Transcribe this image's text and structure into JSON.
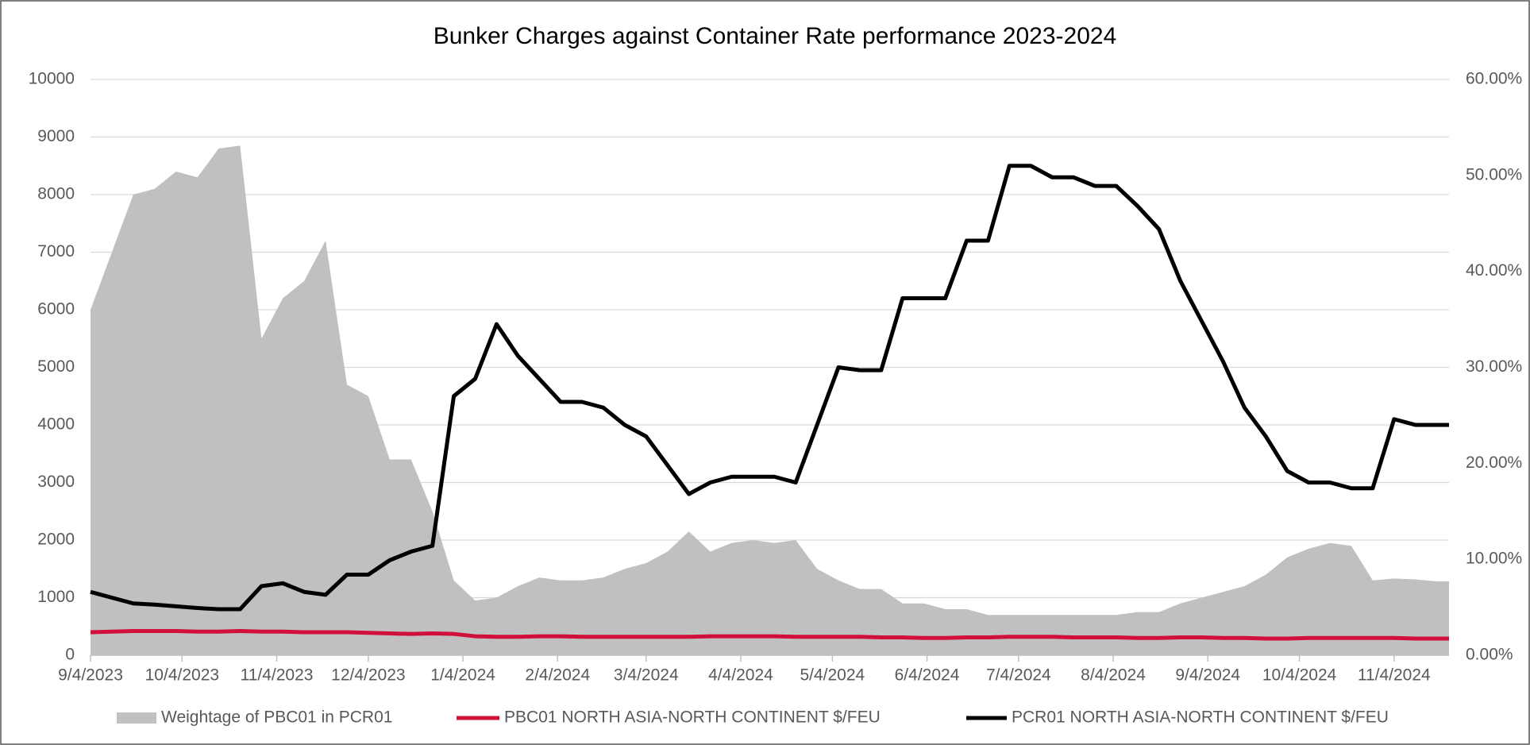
{
  "chart_data": {
    "type": "line",
    "title": "Bunker Charges against Container Rate performance 2023-2024",
    "x": [
      "2023-09-04",
      "2023-09-11",
      "2023-09-18",
      "2023-09-25",
      "2023-10-02",
      "2023-10-09",
      "2023-10-16",
      "2023-10-23",
      "2023-10-30",
      "2023-11-06",
      "2023-11-13",
      "2023-11-20",
      "2023-11-27",
      "2023-12-04",
      "2023-12-11",
      "2023-12-18",
      "2023-12-25",
      "2024-01-01",
      "2024-01-08",
      "2024-01-15",
      "2024-01-22",
      "2024-01-29",
      "2024-02-05",
      "2024-02-12",
      "2024-02-19",
      "2024-02-26",
      "2024-03-04",
      "2024-03-11",
      "2024-03-18",
      "2024-03-25",
      "2024-04-01",
      "2024-04-08",
      "2024-04-15",
      "2024-04-22",
      "2024-04-29",
      "2024-05-06",
      "2024-05-13",
      "2024-05-20",
      "2024-05-27",
      "2024-06-03",
      "2024-06-10",
      "2024-06-17",
      "2024-06-24",
      "2024-07-01",
      "2024-07-08",
      "2024-07-15",
      "2024-07-22",
      "2024-07-29",
      "2024-08-05",
      "2024-08-12",
      "2024-08-19",
      "2024-08-26",
      "2024-09-02",
      "2024-09-09",
      "2024-09-16",
      "2024-09-23",
      "2024-09-30",
      "2024-10-07",
      "2024-10-14",
      "2024-10-21",
      "2024-10-28",
      "2024-11-04",
      "2024-11-11",
      "2024-11-18",
      "2024-11-22"
    ],
    "series": [
      {
        "name": "Weightage of PBC01 in PCR01",
        "type": "area",
        "axis": "y2",
        "color": "#c0c0c0",
        "values": [
          36,
          42,
          48,
          48.6,
          50.4,
          49.8,
          52.8,
          53.1,
          33,
          37.2,
          39,
          43.2,
          28.2,
          27,
          20.4,
          20.4,
          15,
          7.8,
          5.7,
          6,
          7.2,
          8.1,
          7.8,
          7.8,
          8.1,
          9,
          9.6,
          10.8,
          12.9,
          10.8,
          11.7,
          12,
          11.7,
          12,
          9,
          7.8,
          6.9,
          6.9,
          5.4,
          5.4,
          4.8,
          4.8,
          4.2,
          4.2,
          4.2,
          4.2,
          4.2,
          4.2,
          4.2,
          4.5,
          4.5,
          5.4,
          6,
          6.6,
          7.2,
          8.4,
          10.2,
          11.1,
          11.7,
          11.4,
          7.8,
          8,
          7.9,
          7.7,
          7.7
        ]
      },
      {
        "name": "PBC01 NORTH ASIA-NORTH CONTINENT $/FEU",
        "type": "line",
        "color": "#d0103a",
        "values": [
          400,
          410,
          420,
          420,
          420,
          410,
          410,
          420,
          410,
          410,
          400,
          400,
          400,
          390,
          380,
          370,
          380,
          370,
          330,
          320,
          320,
          330,
          330,
          320,
          320,
          320,
          320,
          320,
          320,
          330,
          330,
          330,
          330,
          320,
          320,
          320,
          320,
          310,
          310,
          300,
          300,
          310,
          310,
          320,
          320,
          320,
          310,
          310,
          310,
          300,
          300,
          310,
          310,
          300,
          300,
          290,
          290,
          300,
          300,
          300,
          300,
          300,
          290,
          290,
          290
        ]
      },
      {
        "name": "PCR01 NORTH ASIA-NORTH CONTINENT $/FEU",
        "type": "line",
        "color": "#000000",
        "values": [
          1100,
          1000,
          900,
          880,
          850,
          820,
          800,
          800,
          1200,
          1250,
          1100,
          1050,
          1400,
          1400,
          1650,
          1800,
          1900,
          4500,
          4800,
          5750,
          5200,
          4800,
          4400,
          4400,
          4300,
          4000,
          3800,
          3300,
          2800,
          3000,
          3100,
          3100,
          3100,
          3000,
          4000,
          5000,
          4950,
          4950,
          6200,
          6200,
          6200,
          7200,
          7200,
          8500,
          8500,
          8300,
          8300,
          8150,
          8150,
          7800,
          7400,
          6500,
          5800,
          5100,
          4300,
          3800,
          3200,
          3000,
          3000,
          2900,
          2900,
          4100,
          4000,
          4000,
          4000
        ]
      }
    ],
    "xlim": [
      "2023-09-04",
      "2024-11-22"
    ],
    "xticks": [
      {
        "value": "2023-09-04",
        "label": "9/4/2023"
      },
      {
        "value": "2023-10-04",
        "label": "10/4/2023"
      },
      {
        "value": "2023-11-04",
        "label": "11/4/2023"
      },
      {
        "value": "2023-12-04",
        "label": "12/4/2023"
      },
      {
        "value": "2024-01-04",
        "label": "1/4/2024"
      },
      {
        "value": "2024-02-04",
        "label": "2/4/2024"
      },
      {
        "value": "2024-03-04",
        "label": "3/4/2024"
      },
      {
        "value": "2024-04-04",
        "label": "4/4/2024"
      },
      {
        "value": "2024-05-04",
        "label": "5/4/2024"
      },
      {
        "value": "2024-06-04",
        "label": "6/4/2024"
      },
      {
        "value": "2024-07-04",
        "label": "7/4/2024"
      },
      {
        "value": "2024-08-04",
        "label": "8/4/2024"
      },
      {
        "value": "2024-09-04",
        "label": "9/4/2024"
      },
      {
        "value": "2024-10-04",
        "label": "10/4/2024"
      },
      {
        "value": "2024-11-04",
        "label": "11/4/2024"
      }
    ],
    "ylim": [
      0,
      10000
    ],
    "yticks": [
      0,
      1000,
      2000,
      3000,
      4000,
      5000,
      6000,
      7000,
      8000,
      9000,
      10000
    ],
    "y2lim": [
      0,
      60
    ],
    "y2ticks": [
      {
        "value": 0,
        "label": "0.00%"
      },
      {
        "value": 10,
        "label": "10.00%"
      },
      {
        "value": 20,
        "label": "20.00%"
      },
      {
        "value": 30,
        "label": "30.00%"
      },
      {
        "value": 40,
        "label": "40.00%"
      },
      {
        "value": 50,
        "label": "50.00%"
      },
      {
        "value": 60,
        "label": "60.00%"
      }
    ],
    "grid": true,
    "legend": "bottom"
  }
}
